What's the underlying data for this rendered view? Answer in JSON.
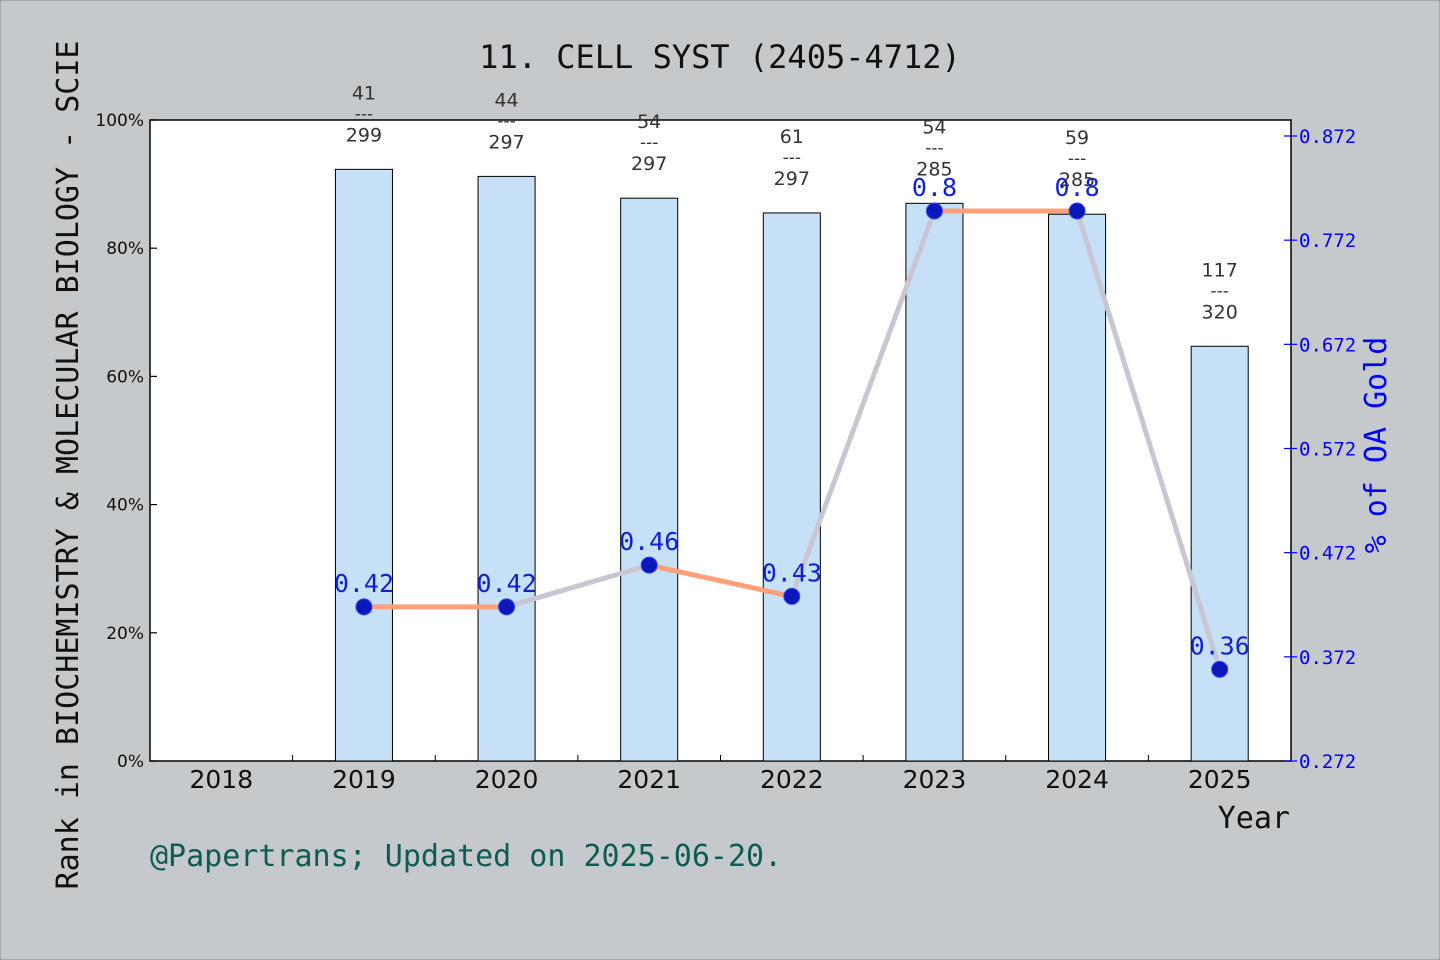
{
  "chart_data": {
    "type": "bar",
    "title": "11. CELL SYST (2405-4712)",
    "xlabel": "Year",
    "ylabel": "Rank in BIOCHEMISTRY & MOLECULAR BIOLOGY - SCIE",
    "y2label": "% of OA Gold",
    "footer": "@Papertrans; Updated on 2025-06-20.",
    "categories": [
      "2018",
      "2019",
      "2020",
      "2021",
      "2022",
      "2023",
      "2024",
      "2025"
    ],
    "ylim": [
      0,
      100
    ],
    "y_ticks": [
      "0%",
      "20%",
      "40%",
      "60%",
      "80%",
      "100%"
    ],
    "y2lim": [
      0.272,
      0.872
    ],
    "y2_ticks": [
      "0.272",
      "0.372",
      "0.472",
      "0.572",
      "0.672",
      "0.772",
      "0.872"
    ],
    "bars": [
      {
        "year": "2019",
        "value": 92.3,
        "rank": "41",
        "sep": "---",
        "total": "299"
      },
      {
        "year": "2020",
        "value": 91.2,
        "rank": "44",
        "sep": "---",
        "total": "297"
      },
      {
        "year": "2021",
        "value": 87.8,
        "rank": "54",
        "sep": "---",
        "total": "297"
      },
      {
        "year": "2022",
        "value": 85.5,
        "rank": "61",
        "sep": "---",
        "total": "297"
      },
      {
        "year": "2023",
        "value": 87.0,
        "rank": "54",
        "sep": "---",
        "total": "285"
      },
      {
        "year": "2024",
        "value": 85.3,
        "rank": "59",
        "sep": "---",
        "total": "285"
      },
      {
        "year": "2025",
        "value": 64.7,
        "rank": "117",
        "sep": "---",
        "total": "320"
      }
    ],
    "line": [
      {
        "year": "2019",
        "value": 0.42,
        "label": "0.42"
      },
      {
        "year": "2020",
        "value": 0.42,
        "label": "0.42"
      },
      {
        "year": "2021",
        "value": 0.46,
        "label": "0.46"
      },
      {
        "year": "2022",
        "value": 0.43,
        "label": "0.43"
      },
      {
        "year": "2023",
        "value": 0.8,
        "label": "0.8"
      },
      {
        "year": "2024",
        "value": 0.8,
        "label": "0.8"
      },
      {
        "year": "2025",
        "value": 0.36,
        "label": "0.36"
      }
    ],
    "grid": false,
    "colors": {
      "background": "#c5c9cc",
      "plot": "#ffffff",
      "bar": "#c6e0f7",
      "line": "#ffa07a",
      "marker": "#0b17b8",
      "right_axis": "#0000ff",
      "footer": "#0d5b53"
    }
  }
}
